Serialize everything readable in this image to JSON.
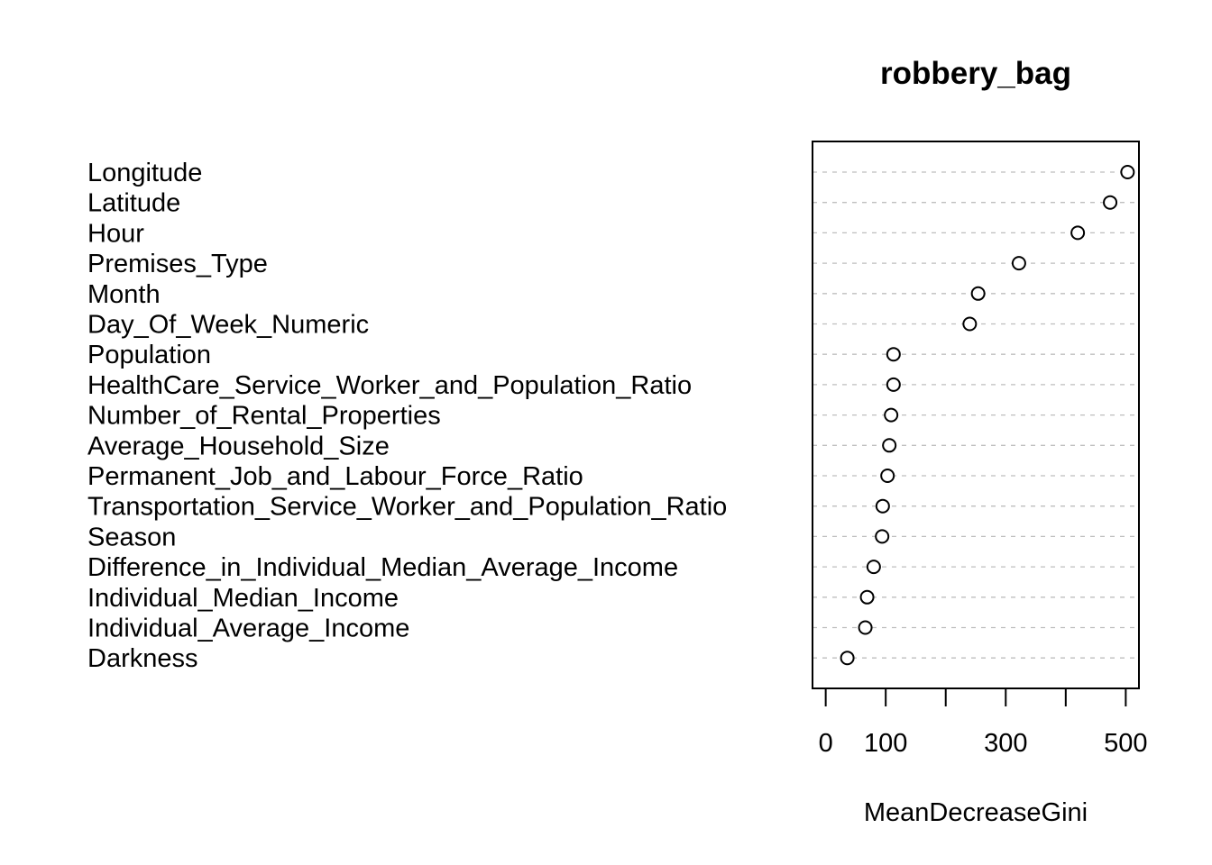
{
  "chart_data": {
    "type": "scatter",
    "title": "robbery_bag",
    "xlabel": "MeanDecreaseGini",
    "ylabel": "",
    "xlim": [
      -22,
      522
    ],
    "x_ticks": [
      0,
      100,
      200,
      300,
      400,
      500
    ],
    "x_tick_labels": [
      "0",
      "100",
      "",
      "300",
      "",
      "500"
    ],
    "grid": "dotted horizontal lines per variable",
    "categories": [
      "Longitude",
      "Latitude",
      "Hour",
      "Premises_Type",
      "Month",
      "Day_Of_Week_Numeric",
      "Population",
      "HealthCare_Service_Worker_and_Population_Ratio",
      "Number_of_Rental_Properties",
      "Average_Household_Size",
      "Permanent_Job_and_Labour_Force_Ratio",
      "Transportation_Service_Worker_and_Population_Ratio",
      "Season",
      "Difference_in_Individual_Median_Average_Income",
      "Individual_Median_Income",
      "Individual_Average_Income",
      "Darkness"
    ],
    "values": [
      503,
      474,
      420,
      322,
      254,
      240,
      113,
      113,
      109,
      106,
      103,
      95,
      94,
      80,
      69,
      66,
      36
    ]
  }
}
